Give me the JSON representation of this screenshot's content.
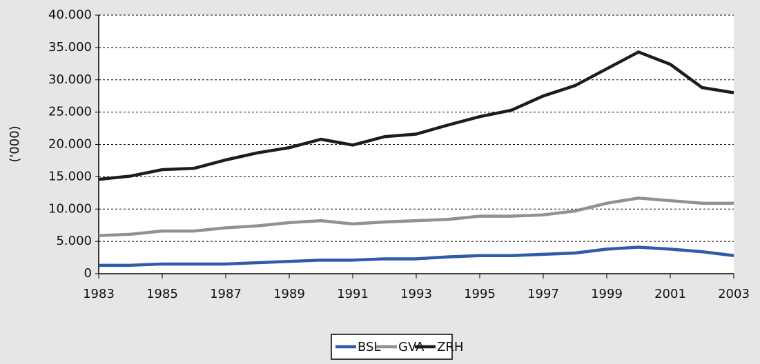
{
  "chart_data": {
    "type": "line",
    "y_label": "('000)",
    "x": [
      1983,
      1984,
      1985,
      1986,
      1987,
      1988,
      1989,
      1990,
      1991,
      1992,
      1993,
      1994,
      1995,
      1996,
      1997,
      1998,
      1999,
      2000,
      2001,
      2002,
      2003
    ],
    "series": [
      {
        "name": "BSL",
        "color": "#2f5ba8",
        "values": [
          1300,
          1300,
          1500,
          1500,
          1500,
          1700,
          1900,
          2100,
          2100,
          2300,
          2300,
          2600,
          2800,
          2800,
          3000,
          3200,
          3800,
          4100,
          3800,
          3400,
          2800
        ]
      },
      {
        "name": "GVA",
        "color": "#8d9296",
        "values": [
          5900,
          6100,
          6600,
          6600,
          7100,
          7400,
          7900,
          8200,
          7700,
          8000,
          8200,
          8400,
          8900,
          8900,
          9100,
          9700,
          10900,
          11700,
          11300,
          10900,
          10900
        ]
      },
      {
        "name": "ZRH",
        "color": "#1c1c1c",
        "values": [
          14600,
          15100,
          16100,
          16300,
          17600,
          18700,
          19500,
          20800,
          19900,
          21200,
          21600,
          23000,
          24300,
          25300,
          27500,
          29100,
          31700,
          34300,
          32400,
          28800,
          28000
        ]
      }
    ],
    "xlim": [
      1983,
      2003
    ],
    "xticks": [
      1983,
      1985,
      1987,
      1989,
      1991,
      1993,
      1995,
      1997,
      1999,
      2001,
      2003
    ],
    "ylim": [
      0,
      40000
    ],
    "yticks": [
      0,
      {
        "value": 5000,
        "label": "5.000"
      },
      {
        "value": 10000,
        "label": "10.000"
      },
      {
        "value": 15000,
        "label": "15.000"
      },
      {
        "value": 20000,
        "label": "20.000"
      },
      {
        "value": 25000,
        "label": "25.000"
      },
      {
        "value": 30000,
        "label": "30.000"
      },
      {
        "value": 35000,
        "label": "35.000"
      },
      {
        "value": 40000,
        "label": "40.000"
      }
    ],
    "grid": true,
    "legend": "bottom"
  }
}
